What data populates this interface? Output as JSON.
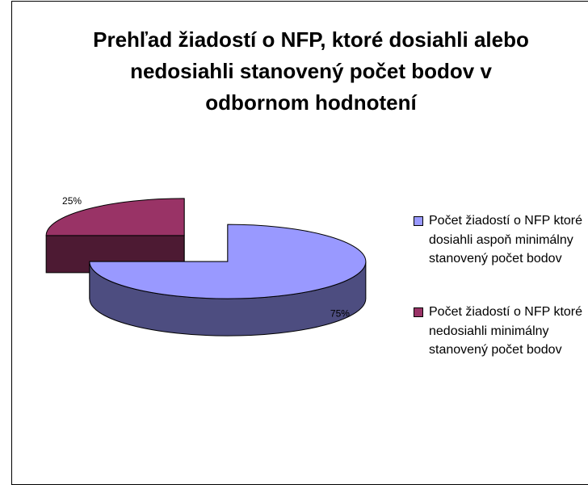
{
  "chart_data": {
    "type": "pie3d",
    "title": "Prehľad žiadostí o NFP, ktoré dosiahli alebo nedosiahli stanovený počet bodov v odbornom hodnotení",
    "categories": [
      "Počet žiadostí o NFP ktoré dosiahli aspoň minimálny stanovený počet bodov",
      "Počet žiadostí o NFP ktoré nedosiahli minimálny stanovený počet bodov"
    ],
    "values": [
      75,
      25
    ],
    "value_labels": [
      "75%",
      "25%"
    ],
    "colors": [
      "#9999ff",
      "#993366"
    ],
    "legend": "right"
  }
}
